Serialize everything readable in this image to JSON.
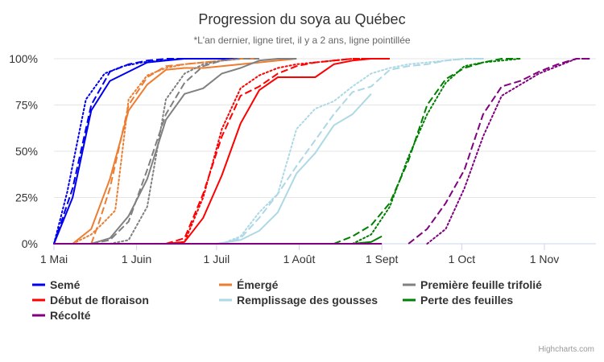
{
  "chart_data": {
    "type": "line",
    "title": "Progression du soya au Québec",
    "subtitle": "*L'an dernier, ligne tiret, il y a 2 ans, ligne pointillée",
    "credits": "Highcharts.com",
    "xaxis": {
      "start": "2024-05-01",
      "end": "2024-11-20",
      "ticks": [
        {
          "label": "1 Mai",
          "date": "2024-05-01"
        },
        {
          "label": "1 Juin",
          "date": "2024-06-01"
        },
        {
          "label": "1 Juil",
          "date": "2024-07-01"
        },
        {
          "label": "1 Août",
          "date": "2024-08-01"
        },
        {
          "label": "1 Sept",
          "date": "2024-09-01"
        },
        {
          "label": "1 Oct",
          "date": "2024-10-01"
        },
        {
          "label": "1 Nov",
          "date": "2024-11-01"
        }
      ]
    },
    "yaxis": {
      "min": 0,
      "max": 100,
      "ticks": [
        {
          "label": "0%",
          "value": 0
        },
        {
          "label": "25%",
          "value": 25
        },
        {
          "label": "50%",
          "value": 50
        },
        {
          "label": "75%",
          "value": 75
        },
        {
          "label": "100%",
          "value": 100
        }
      ]
    },
    "legend": {
      "position": "bottom",
      "items": [
        {
          "name": "Semé",
          "color": "#0000ee"
        },
        {
          "name": "Émergé",
          "color": "#ed7d31"
        },
        {
          "name": "Première feuille trifolié",
          "color": "#808080"
        },
        {
          "name": "Début de floraison",
          "color": "#ff0000"
        },
        {
          "name": "Remplissage des gousses",
          "color": "#add8e6"
        },
        {
          "name": "Perte des feuilles",
          "color": "#008000"
        },
        {
          "name": "Récolté",
          "color": "#800080"
        }
      ]
    },
    "series": [
      {
        "name": "Semé",
        "color": "#0000ee",
        "dash": "solid",
        "points": [
          [
            "2024-05-01",
            0
          ],
          [
            "2024-05-08",
            25
          ],
          [
            "2024-05-15",
            72
          ],
          [
            "2024-05-22",
            88
          ],
          [
            "2024-05-29",
            93
          ],
          [
            "2024-06-05",
            98
          ],
          [
            "2024-06-12",
            99
          ],
          [
            "2024-06-19",
            100
          ],
          [
            "2024-06-26",
            100
          ],
          [
            "2024-07-10",
            100
          ]
        ]
      },
      {
        "name": "Semé",
        "color": "#0000ee",
        "dash": "dashed",
        "points": [
          [
            "2024-05-01",
            0
          ],
          [
            "2024-05-08",
            30
          ],
          [
            "2024-05-15",
            75
          ],
          [
            "2024-05-22",
            93
          ],
          [
            "2024-05-29",
            97
          ],
          [
            "2024-06-05",
            99
          ],
          [
            "2024-06-12",
            100
          ],
          [
            "2024-06-19",
            100
          ]
        ]
      },
      {
        "name": "Semé",
        "color": "#0000ee",
        "dash": "dotted",
        "points": [
          [
            "2024-05-01",
            0
          ],
          [
            "2024-05-06",
            28
          ],
          [
            "2024-05-13",
            78
          ],
          [
            "2024-05-20",
            92
          ],
          [
            "2024-05-27",
            96
          ],
          [
            "2024-06-03",
            98
          ],
          [
            "2024-06-10",
            99
          ],
          [
            "2024-06-17",
            100
          ],
          [
            "2024-06-24",
            100
          ]
        ]
      },
      {
        "name": "Émergé",
        "color": "#ed7d31",
        "dash": "solid",
        "points": [
          [
            "2024-05-08",
            0
          ],
          [
            "2024-05-15",
            8
          ],
          [
            "2024-05-22",
            35
          ],
          [
            "2024-05-29",
            72
          ],
          [
            "2024-06-05",
            86
          ],
          [
            "2024-06-12",
            94
          ],
          [
            "2024-06-19",
            95
          ],
          [
            "2024-06-26",
            95
          ],
          [
            "2024-07-03",
            96
          ],
          [
            "2024-07-10",
            97
          ],
          [
            "2024-07-17",
            98
          ],
          [
            "2024-07-24",
            99
          ],
          [
            "2024-07-31",
            100
          ]
        ]
      },
      {
        "name": "Émergé",
        "color": "#ed7d31",
        "dash": "dashed",
        "points": [
          [
            "2024-05-15",
            0
          ],
          [
            "2024-05-18",
            12
          ],
          [
            "2024-05-22",
            30
          ],
          [
            "2024-05-29",
            75
          ],
          [
            "2024-06-05",
            90
          ],
          [
            "2024-06-12",
            96
          ],
          [
            "2024-06-19",
            97
          ],
          [
            "2024-06-26",
            98
          ],
          [
            "2024-07-03",
            99
          ],
          [
            "2024-07-10",
            100
          ],
          [
            "2024-07-17",
            100
          ]
        ]
      },
      {
        "name": "Émergé",
        "color": "#ed7d31",
        "dash": "dotted",
        "points": [
          [
            "2024-05-08",
            0
          ],
          [
            "2024-05-15",
            5
          ],
          [
            "2024-05-20",
            12
          ],
          [
            "2024-05-24",
            18
          ],
          [
            "2024-05-29",
            78
          ],
          [
            "2024-06-05",
            91
          ],
          [
            "2024-06-12",
            95
          ],
          [
            "2024-06-19",
            97
          ],
          [
            "2024-06-26",
            98
          ],
          [
            "2024-07-03",
            99
          ],
          [
            "2024-07-10",
            100
          ]
        ]
      },
      {
        "name": "Première feuille trifolié",
        "color": "#808080",
        "dash": "solid",
        "points": [
          [
            "2024-05-15",
            0
          ],
          [
            "2024-05-22",
            3
          ],
          [
            "2024-05-29",
            15
          ],
          [
            "2024-06-05",
            35
          ],
          [
            "2024-06-12",
            67
          ],
          [
            "2024-06-19",
            81
          ],
          [
            "2024-06-26",
            84
          ],
          [
            "2024-07-03",
            92
          ],
          [
            "2024-07-10",
            95
          ],
          [
            "2024-07-17",
            99
          ],
          [
            "2024-07-24",
            100
          ],
          [
            "2024-07-31",
            100
          ]
        ]
      },
      {
        "name": "Première feuille trifolié",
        "color": "#808080",
        "dash": "dashed",
        "points": [
          [
            "2024-05-15",
            0
          ],
          [
            "2024-05-22",
            2
          ],
          [
            "2024-05-29",
            12
          ],
          [
            "2024-06-05",
            40
          ],
          [
            "2024-06-12",
            70
          ],
          [
            "2024-06-19",
            87
          ],
          [
            "2024-06-26",
            96
          ],
          [
            "2024-07-03",
            99
          ],
          [
            "2024-07-10",
            100
          ],
          [
            "2024-07-17",
            100
          ]
        ]
      },
      {
        "name": "Première feuille trifolié",
        "color": "#808080",
        "dash": "dotted",
        "points": [
          [
            "2024-05-22",
            0
          ],
          [
            "2024-05-29",
            2
          ],
          [
            "2024-06-05",
            20
          ],
          [
            "2024-06-12",
            78
          ],
          [
            "2024-06-19",
            92
          ],
          [
            "2024-06-26",
            97
          ],
          [
            "2024-07-03",
            99
          ],
          [
            "2024-07-10",
            100
          ]
        ]
      },
      {
        "name": "Début de floraison",
        "color": "#ff0000",
        "dash": "solid",
        "points": [
          [
            "2024-06-12",
            0
          ],
          [
            "2024-06-19",
            1
          ],
          [
            "2024-06-26",
            14
          ],
          [
            "2024-07-03",
            37
          ],
          [
            "2024-07-10",
            65
          ],
          [
            "2024-07-17",
            83
          ],
          [
            "2024-07-24",
            90
          ],
          [
            "2024-07-31",
            90
          ],
          [
            "2024-08-07",
            90
          ],
          [
            "2024-08-14",
            97
          ],
          [
            "2024-08-21",
            99
          ],
          [
            "2024-08-28",
            100
          ],
          [
            "2024-09-04",
            100
          ]
        ]
      },
      {
        "name": "Début de floraison",
        "color": "#ff0000",
        "dash": "dashed",
        "points": [
          [
            "2024-06-12",
            0
          ],
          [
            "2024-06-19",
            3
          ],
          [
            "2024-06-26",
            27
          ],
          [
            "2024-07-03",
            58
          ],
          [
            "2024-07-10",
            80
          ],
          [
            "2024-07-17",
            85
          ],
          [
            "2024-07-24",
            92
          ],
          [
            "2024-07-31",
            96
          ],
          [
            "2024-08-07",
            98
          ],
          [
            "2024-08-14",
            99
          ],
          [
            "2024-08-21",
            100
          ],
          [
            "2024-08-28",
            100
          ]
        ]
      },
      {
        "name": "Début de floraison",
        "color": "#ff0000",
        "dash": "dotted",
        "points": [
          [
            "2024-06-12",
            0
          ],
          [
            "2024-06-19",
            1
          ],
          [
            "2024-06-26",
            25
          ],
          [
            "2024-07-03",
            62
          ],
          [
            "2024-07-10",
            84
          ],
          [
            "2024-07-17",
            91
          ],
          [
            "2024-07-24",
            95
          ],
          [
            "2024-07-31",
            97
          ],
          [
            "2024-08-07",
            98
          ],
          [
            "2024-08-14",
            99
          ],
          [
            "2024-08-21",
            100
          ],
          [
            "2024-08-28",
            100
          ]
        ]
      },
      {
        "name": "Remplissage des gousses",
        "color": "#add8e6",
        "dash": "solid",
        "points": [
          [
            "2024-07-01",
            0
          ],
          [
            "2024-07-10",
            2
          ],
          [
            "2024-07-17",
            7
          ],
          [
            "2024-07-24",
            17
          ],
          [
            "2024-07-31",
            38
          ],
          [
            "2024-08-07",
            49
          ],
          [
            "2024-08-14",
            64
          ],
          [
            "2024-08-21",
            70
          ],
          [
            "2024-08-28",
            81
          ]
        ]
      },
      {
        "name": "Remplissage des gousses",
        "color": "#add8e6",
        "dash": "dashed",
        "points": [
          [
            "2024-07-03",
            0
          ],
          [
            "2024-07-10",
            3
          ],
          [
            "2024-07-17",
            14
          ],
          [
            "2024-07-24",
            27
          ],
          [
            "2024-07-31",
            42
          ],
          [
            "2024-08-07",
            56
          ],
          [
            "2024-08-14",
            70
          ],
          [
            "2024-08-21",
            82
          ],
          [
            "2024-08-28",
            85
          ],
          [
            "2024-09-04",
            94
          ],
          [
            "2024-09-11",
            96
          ],
          [
            "2024-09-18",
            97
          ],
          [
            "2024-09-25",
            99
          ],
          [
            "2024-10-02",
            100
          ],
          [
            "2024-10-09",
            100
          ]
        ]
      },
      {
        "name": "Remplissage des gousses",
        "color": "#add8e6",
        "dash": "dotted",
        "points": [
          [
            "2024-07-03",
            0
          ],
          [
            "2024-07-10",
            4
          ],
          [
            "2024-07-17",
            17
          ],
          [
            "2024-07-24",
            27
          ],
          [
            "2024-07-31",
            62
          ],
          [
            "2024-08-07",
            73
          ],
          [
            "2024-08-14",
            77
          ],
          [
            "2024-08-21",
            85
          ],
          [
            "2024-08-28",
            92
          ],
          [
            "2024-09-04",
            95
          ],
          [
            "2024-09-11",
            97
          ],
          [
            "2024-09-18",
            98
          ],
          [
            "2024-09-25",
            99
          ],
          [
            "2024-10-02",
            100
          ],
          [
            "2024-10-09",
            100
          ]
        ]
      },
      {
        "name": "Perte des feuilles",
        "color": "#008000",
        "dash": "solid",
        "points": [
          [
            "2024-05-01",
            0
          ],
          [
            "2024-08-14",
            0
          ],
          [
            "2024-08-21",
            0
          ],
          [
            "2024-08-28",
            1
          ],
          [
            "2024-09-01",
            4
          ]
        ]
      },
      {
        "name": "Perte des feuilles",
        "color": "#008000",
        "dash": "dashed",
        "points": [
          [
            "2024-08-14",
            0
          ],
          [
            "2024-08-21",
            4
          ],
          [
            "2024-08-28",
            10
          ],
          [
            "2024-09-04",
            22
          ],
          [
            "2024-09-11",
            45
          ],
          [
            "2024-09-18",
            75
          ],
          [
            "2024-09-25",
            89
          ],
          [
            "2024-10-02",
            95
          ],
          [
            "2024-10-09",
            98
          ],
          [
            "2024-10-16",
            100
          ],
          [
            "2024-10-23",
            100
          ]
        ]
      },
      {
        "name": "Perte des feuilles",
        "color": "#008000",
        "dash": "dotted",
        "points": [
          [
            "2024-08-21",
            0
          ],
          [
            "2024-08-28",
            5
          ],
          [
            "2024-09-04",
            20
          ],
          [
            "2024-09-11",
            47
          ],
          [
            "2024-09-18",
            70
          ],
          [
            "2024-09-25",
            87
          ],
          [
            "2024-10-02",
            96
          ],
          [
            "2024-10-09",
            98
          ],
          [
            "2024-10-16",
            99
          ],
          [
            "2024-10-23",
            100
          ]
        ]
      },
      {
        "name": "Récolté",
        "color": "#800080",
        "dash": "solid",
        "points": [
          [
            "2024-05-01",
            0
          ],
          [
            "2024-09-01",
            0
          ]
        ]
      },
      {
        "name": "Récolté",
        "color": "#800080",
        "dash": "dashed",
        "points": [
          [
            "2024-09-11",
            0
          ],
          [
            "2024-09-18",
            8
          ],
          [
            "2024-09-25",
            22
          ],
          [
            "2024-10-02",
            40
          ],
          [
            "2024-10-09",
            70
          ],
          [
            "2024-10-16",
            85
          ],
          [
            "2024-10-23",
            88
          ],
          [
            "2024-10-30",
            93
          ],
          [
            "2024-11-06",
            97
          ],
          [
            "2024-11-13",
            100
          ],
          [
            "2024-11-18",
            100
          ]
        ]
      },
      {
        "name": "Récolté",
        "color": "#800080",
        "dash": "dotted",
        "points": [
          [
            "2024-09-18",
            0
          ],
          [
            "2024-09-25",
            8
          ],
          [
            "2024-10-02",
            30
          ],
          [
            "2024-10-09",
            58
          ],
          [
            "2024-10-16",
            80
          ],
          [
            "2024-10-23",
            86
          ],
          [
            "2024-10-30",
            92
          ],
          [
            "2024-11-06",
            96
          ],
          [
            "2024-11-13",
            100
          ],
          [
            "2024-11-18",
            100
          ]
        ]
      }
    ]
  }
}
